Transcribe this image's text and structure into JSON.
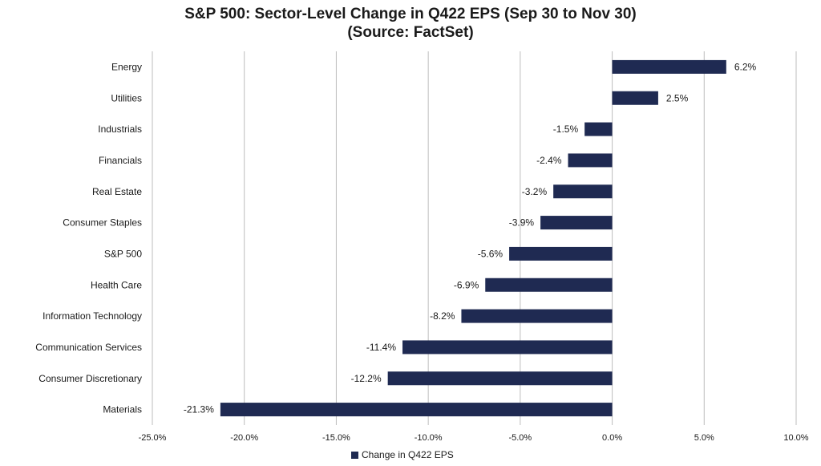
{
  "title": "S&P 500: Sector-Level Change in Q422 EPS (Sep 30 to Nov 30)",
  "subtitle": "(Source: FactSet)",
  "colors": {
    "bar": "#1f2a52",
    "grid": "#bdbdbd",
    "text": "#1a1a1a"
  },
  "chart_data": {
    "type": "bar",
    "orientation": "horizontal",
    "title": "S&P 500: Sector-Level Change in Q422 EPS (Sep 30 to Nov 30)",
    "subtitle": "(Source: FactSet)",
    "categories": [
      "Energy",
      "Utilities",
      "Industrials",
      "Financials",
      "Real Estate",
      "Consumer Staples",
      "S&P 500",
      "Health Care",
      "Information Technology",
      "Communication Services",
      "Consumer Discretionary",
      "Materials"
    ],
    "series": [
      {
        "name": "Change in Q422 EPS",
        "values": [
          6.2,
          2.5,
          -1.5,
          -2.4,
          -3.2,
          -3.9,
          -5.6,
          -6.9,
          -8.2,
          -11.4,
          -12.2,
          -21.3
        ]
      }
    ],
    "data_labels": [
      "6.2%",
      "2.5%",
      "-1.5%",
      "-2.4%",
      "-3.2%",
      "-3.9%",
      "-5.6%",
      "-6.9%",
      "-8.2%",
      "-11.4%",
      "-12.2%",
      "-21.3%"
    ],
    "xlim": [
      -25,
      10
    ],
    "x_ticks": [
      -25,
      -20,
      -15,
      -10,
      -5,
      0,
      5,
      10
    ],
    "x_tick_labels": [
      "-25.0%",
      "-20.0%",
      "-15.0%",
      "-10.0%",
      "-5.0%",
      "0.0%",
      "5.0%",
      "10.0%"
    ],
    "grid": true,
    "legend_position": "bottom"
  }
}
